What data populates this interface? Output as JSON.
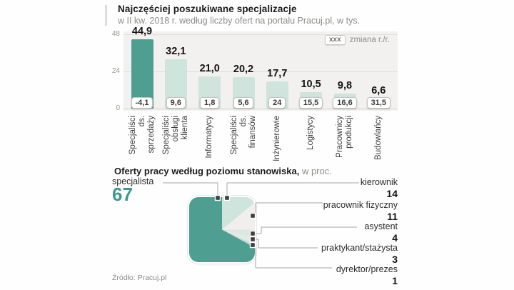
{
  "source_note": "Źródło: Pracuj.pl",
  "chart_data": [
    {
      "type": "bar",
      "title": "Najczęściej poszukiwane specjalizacje",
      "subtitle": "w II kw. 2018 r. według liczby ofert na portalu Pracuj.pl, w tys.",
      "legend": {
        "badge": "xxx",
        "label": "zmiana r./r."
      },
      "categories": [
        "Specjaliści ds. sprzedaży",
        "Specjaliści obsługi klienta",
        "Informatycy",
        "Specjaliści ds. finansów",
        "Inżynierowie",
        "Logistycy",
        "Pracownicy produkcji",
        "Budowlańcy"
      ],
      "category_lines": [
        [
          "Specjaliści",
          "ds.",
          "sprzedaży"
        ],
        [
          "Specjaliści",
          "obsługi",
          "klienta"
        ],
        [
          "Informatycy"
        ],
        [
          "Specjaliści",
          "ds.",
          "finansów"
        ],
        [
          "Inżynierowie"
        ],
        [
          "Logistycy"
        ],
        [
          "Pracownicy",
          "produkcji"
        ],
        [
          "Budowlańcy"
        ]
      ],
      "values": [
        44.9,
        32.1,
        21.0,
        20.2,
        17.7,
        10.5,
        9.8,
        6.6
      ],
      "value_labels": [
        "44,9",
        "32,1",
        "21,0",
        "20,2",
        "17,7",
        "10,5",
        "9,8",
        "6,6"
      ],
      "change_labels": [
        "-4,1",
        "9,6",
        "1,8",
        "5,6",
        "24",
        "15,5",
        "16,6",
        "31,5"
      ],
      "ylim": [
        0,
        48
      ],
      "y_ticks": [
        "48",
        "24",
        "0"
      ],
      "grid": true,
      "colors": {
        "highlight": "#4e9f91",
        "bar": "#cee4dc"
      }
    },
    {
      "type": "pie",
      "title_bold": "Oferty pracy według poziomu stanowiska,",
      "title_rest": " w proc.",
      "slices": [
        {
          "label": "specjalista",
          "value": 67,
          "value_label": "67",
          "color": "#4e9f91"
        },
        {
          "label": "kierownik",
          "value": 14,
          "value_label": "14",
          "color": "#cee4dc"
        },
        {
          "label": "pracownik fizyczny",
          "value": 11,
          "value_label": "11",
          "color": "#f0efed"
        },
        {
          "label": "asystent",
          "value": 4,
          "value_label": "4",
          "color": "#d9e9e2"
        },
        {
          "label": "praktykant/stażysta",
          "value": 3,
          "value_label": "3",
          "color": "#e7e7e4"
        },
        {
          "label": "dyrektor/prezes",
          "value": 1,
          "value_label": "1",
          "color": "#bcd9d0"
        }
      ],
      "legend_position": "right"
    }
  ]
}
